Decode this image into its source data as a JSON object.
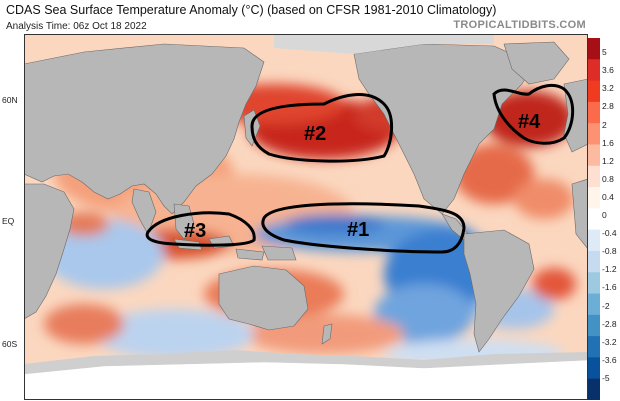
{
  "header": {
    "title": "CDAS Sea Surface Temperature Anomaly (°C) (based on CFSR 1981-2010 Climatology)",
    "analysis_time": "Analysis Time: 06z Oct 18 2022",
    "brand": "TROPICALTIDBITS.COM"
  },
  "latitude_labels": [
    "60N",
    "EQ",
    "60S"
  ],
  "colorbar": {
    "ticks": [
      "5",
      "3.6",
      "3.2",
      "2.8",
      "2",
      "1.6",
      "1.2",
      "0.8",
      "0.4",
      "0",
      "-0.4",
      "-0.8",
      "-1.2",
      "-1.6",
      "-2",
      "-2.8",
      "-3.2",
      "-3.6",
      "-5"
    ],
    "colors": [
      "#a50f15",
      "#de2d26",
      "#f03b20",
      "#fb6a4a",
      "#fc9272",
      "#fcbba1",
      "#fee0d2",
      "#fff5eb",
      "#ffffff",
      "#deebf7",
      "#c6dbef",
      "#9ecae1",
      "#6baed6",
      "#4292c6",
      "#2171b5",
      "#08519c",
      "#08306b"
    ]
  },
  "annotations": [
    {
      "id": "1",
      "label": "#1"
    },
    {
      "id": "2",
      "label": "#2"
    },
    {
      "id": "3",
      "label": "#3"
    },
    {
      "id": "4",
      "label": "#4"
    }
  ],
  "colors": {
    "land": "#b7b7b7",
    "ice": "#ffffff",
    "warm": "#d7301f",
    "cool": "#2b6cc4",
    "annotation_stroke": "#000000"
  }
}
